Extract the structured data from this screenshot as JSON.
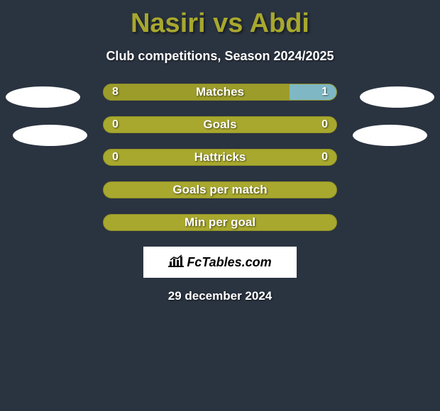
{
  "title": "Nasiri vs Abdi",
  "subtitle": "Club competitions, Season 2024/2025",
  "footer_date": "29 december 2024",
  "logo_text": "FcTables.com",
  "colors": {
    "background": "#2a3340",
    "bar_base": "#a8a82e",
    "bar_border": "#8f8f27",
    "bar_left_fill": "#9c9c2a",
    "bar_right_fill": "#7fb8c4",
    "title_color": "#a8a82e",
    "text_color": "#ffffff",
    "avatar_color": "#ffffff"
  },
  "bars": [
    {
      "label": "Matches",
      "left_value": "8",
      "right_value": "1",
      "left_pct": 80,
      "right_pct": 20,
      "has_values": true
    },
    {
      "label": "Goals",
      "left_value": "0",
      "right_value": "0",
      "left_pct": 100,
      "right_pct": 0,
      "has_values": true
    },
    {
      "label": "Hattricks",
      "left_value": "0",
      "right_value": "0",
      "left_pct": 100,
      "right_pct": 0,
      "has_values": true
    },
    {
      "label": "Goals per match",
      "left_value": "",
      "right_value": "",
      "left_pct": 100,
      "right_pct": 0,
      "has_values": false
    },
    {
      "label": "Min per goal",
      "left_value": "",
      "right_value": "",
      "left_pct": 100,
      "right_pct": 0,
      "has_values": false
    }
  ],
  "typography": {
    "title_fontsize": 38,
    "subtitle_fontsize": 18,
    "bar_label_fontsize": 17,
    "bar_value_fontsize": 16,
    "footer_fontsize": 17
  }
}
